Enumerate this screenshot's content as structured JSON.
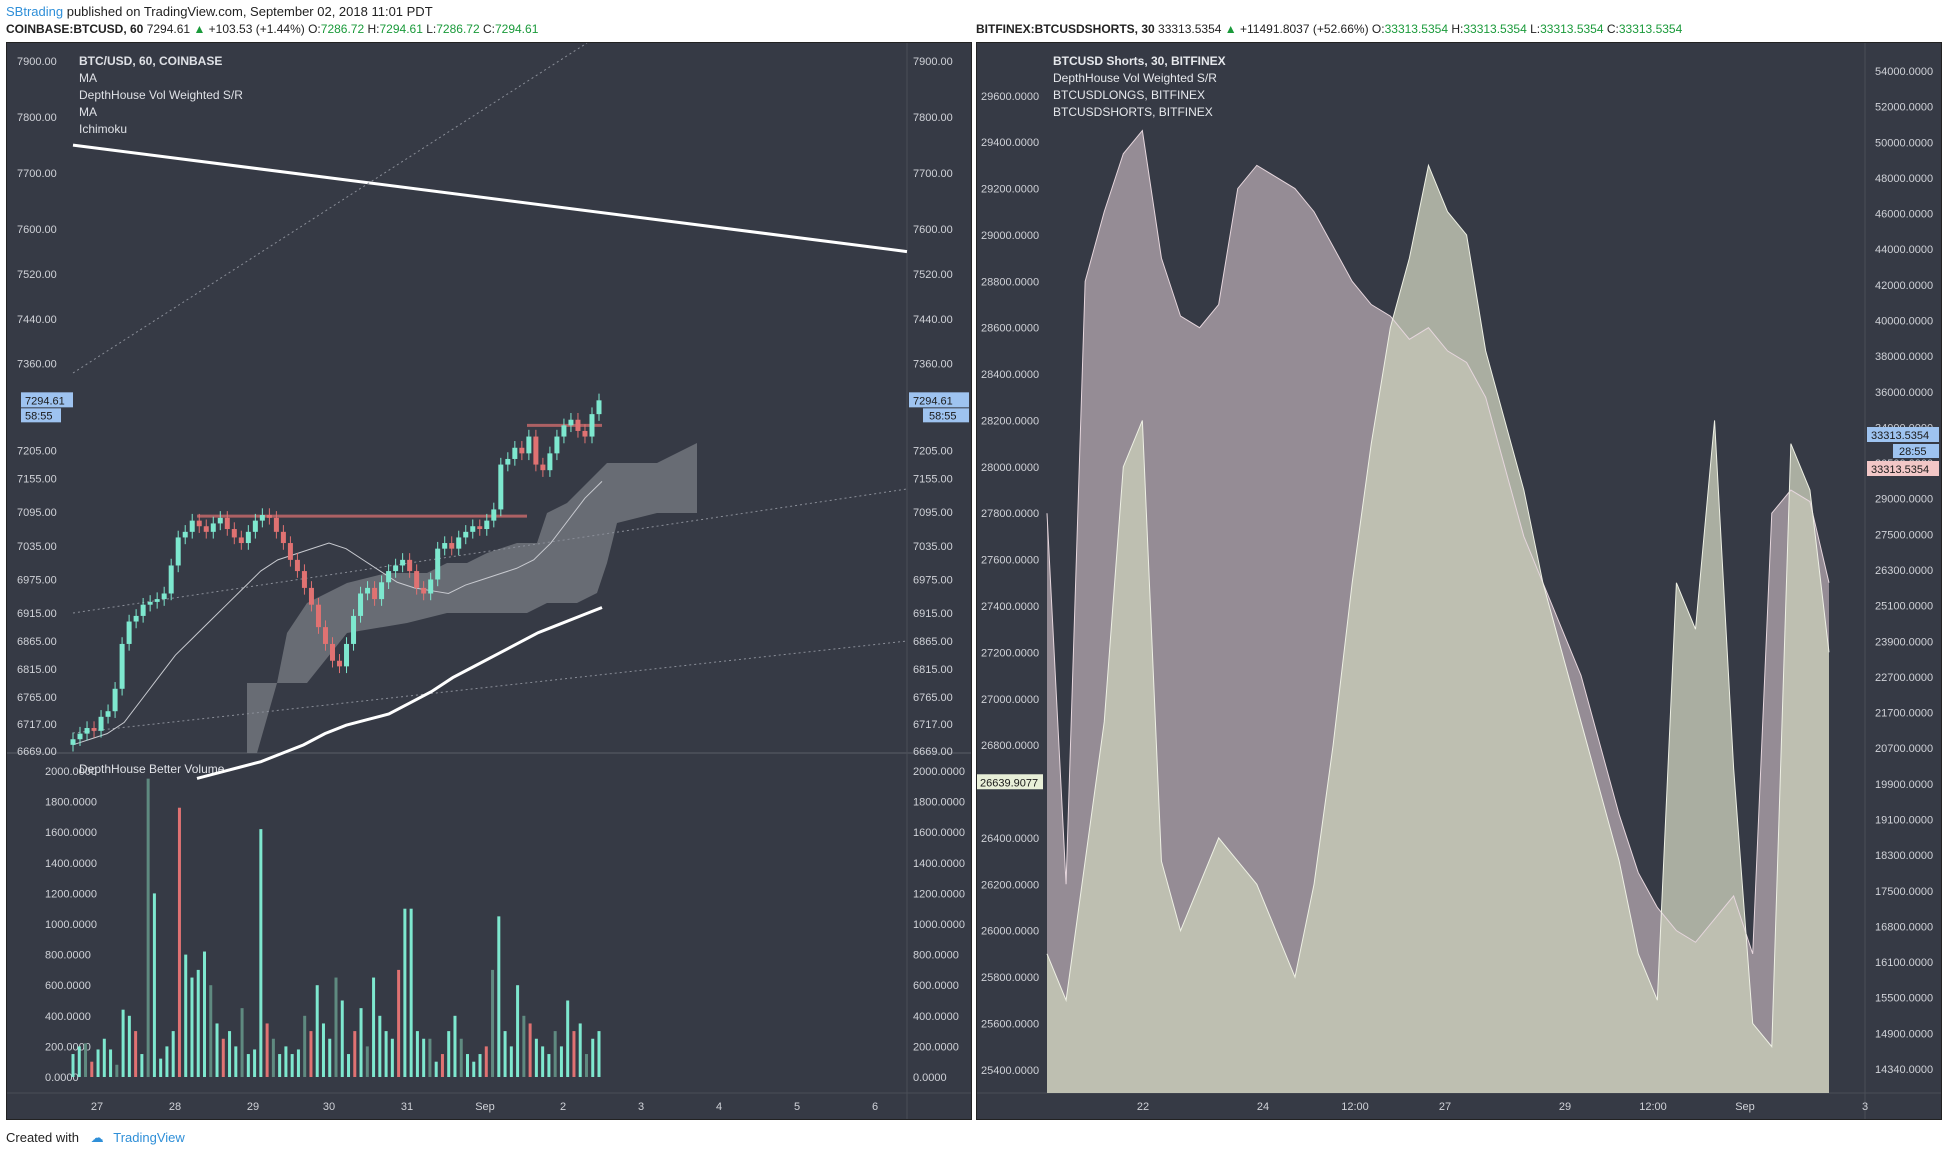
{
  "header": {
    "user": "SBtrading",
    "published": "published on TradingView.com, September 02, 2018 11:01 PDT"
  },
  "left_quote": {
    "symbol": "COINBASE:BTCUSD, 60",
    "last": "7294.61",
    "change": "+103.53 (+1.44%)",
    "o_label": "O:",
    "o": "7286.72",
    "h_label": "H:",
    "h": "7294.61",
    "l_label": "L:",
    "l": "7286.72",
    "c_label": "C:",
    "c": "7294.61"
  },
  "right_quote": {
    "symbol": "BITFINEX:BTCUSDSHORTS, 30",
    "last": "33313.5354",
    "change": "+11491.8037 (+52.66%)",
    "o_label": "O:",
    "o": "33313.5354",
    "h_label": "H:",
    "h": "33313.5354",
    "l_label": "L:",
    "l": "33313.5354",
    "c_label": "C:",
    "c": "33313.5354"
  },
  "footer": {
    "created_with": "Created with",
    "brand": "TradingView"
  },
  "colors": {
    "bg": "#363a45",
    "up": "#7ee8cf",
    "down": "#e07272",
    "grid_text": "#d0d2d8",
    "price_tag": "#9ec3f0",
    "shorts_fill": "#c9b8c0",
    "longs_fill": "#c8ccb8"
  },
  "chart_data": [
    {
      "type": "candlestick",
      "legend": [
        "BTC/USD, 60, COINBASE",
        "MA",
        "DepthHouse Vol Weighted S/R",
        "MA",
        "Ichimoku"
      ],
      "y_ticks": [
        "7900.00",
        "7800.00",
        "7700.00",
        "7600.00",
        "7520.00",
        "7440.00",
        "7360.00",
        "7205.00",
        "7155.00",
        "7095.00",
        "7035.00",
        "6975.00",
        "6915.00",
        "6865.00",
        "6815.00",
        "6765.00",
        "6717.00",
        "6669.00"
      ],
      "x_ticks": [
        "27",
        "28",
        "29",
        "30",
        "31",
        "Sep",
        "2",
        "3",
        "4",
        "5",
        "6"
      ],
      "last_price_tag": "7294.61",
      "countdown_tag": "58:55",
      "close_series": [
        6690,
        6700,
        6710,
        6705,
        6730,
        6740,
        6780,
        6860,
        6900,
        6910,
        6930,
        6935,
        6940,
        6950,
        7000,
        7050,
        7060,
        7080,
        7070,
        7060,
        7075,
        7085,
        7065,
        7050,
        7040,
        7060,
        7080,
        7090,
        7085,
        7060,
        7040,
        7010,
        6990,
        6960,
        6930,
        6890,
        6860,
        6830,
        6820,
        6860,
        6910,
        6950,
        6960,
        6940,
        6970,
        6990,
        7000,
        7010,
        6990,
        6960,
        6950,
        6975,
        7030,
        7040,
        7030,
        7050,
        7060,
        7070,
        7065,
        7080,
        7100,
        7180,
        7190,
        7210,
        7200,
        7230,
        7180,
        7170,
        7200,
        7230,
        7250,
        7260,
        7240,
        7230,
        7270,
        7294.61
      ],
      "ma_fast": [
        6680,
        6690,
        6700,
        6720,
        6760,
        6800,
        6840,
        6870,
        6900,
        6930,
        6960,
        6990,
        7010,
        7020,
        7030,
        7040,
        7030,
        7010,
        6990,
        6970,
        6960,
        6955,
        6950,
        6965,
        6975,
        6985,
        6995,
        7010,
        7040,
        7080,
        7120,
        7150
      ],
      "ma_slow": [
        6620,
        6630,
        6640,
        6650,
        6665,
        6680,
        6700,
        6715,
        6725,
        6735,
        6755,
        6775,
        6800,
        6820,
        6840,
        6860,
        6880,
        6895,
        6910,
        6925
      ],
      "trendline": {
        "start": 7750,
        "end": 7560
      }
    },
    {
      "type": "bar",
      "legend": [
        "DepthHouse Better Volume"
      ],
      "y_ticks": [
        "2000.0000",
        "1800.0000",
        "1600.0000",
        "1400.0000",
        "1200.0000",
        "1000.0000",
        "800.0000",
        "600.0000",
        "400.0000",
        "200.0000",
        "0.0000"
      ],
      "values": [
        150,
        200,
        220,
        100,
        180,
        250,
        180,
        80,
        440,
        400,
        300,
        150,
        1950,
        1200,
        120,
        200,
        300,
        1760,
        800,
        650,
        700,
        820,
        600,
        350,
        250,
        300,
        200,
        450,
        150,
        180,
        1620,
        350,
        250,
        150,
        200,
        150,
        180,
        400,
        300,
        600,
        350,
        250,
        650,
        500,
        150,
        300,
        450,
        200,
        650,
        400,
        300,
        250,
        700,
        1100,
        1100,
        300,
        250,
        250,
        100,
        150,
        300,
        400,
        250,
        150,
        100,
        150,
        200,
        700,
        1050,
        300,
        200,
        600,
        400,
        350,
        250,
        200,
        150,
        300,
        200,
        500,
        300,
        350,
        150,
        250,
        300
      ],
      "colors_pattern": "mostly up (teal) with down (red) and neutral (gray) bars"
    },
    {
      "type": "area",
      "legend": [
        "BTCUSD Shorts, 30, BITFINEX",
        "DepthHouse Vol Weighted S/R",
        "BTCUSDLONGS, BITFINEX",
        "BTCUSDSHORTS, BITFINEX"
      ],
      "y_ticks_left": [
        "29600.0000",
        "29400.0000",
        "29200.0000",
        "29000.0000",
        "28800.0000",
        "28600.0000",
        "28400.0000",
        "28200.0000",
        "28000.0000",
        "27800.0000",
        "27600.0000",
        "27400.0000",
        "27200.0000",
        "27000.0000",
        "26800.0000",
        "26400.0000",
        "26200.0000",
        "26000.0000",
        "25800.0000",
        "25600.0000",
        "25400.0000"
      ],
      "y_ticks_right": [
        "54000.0000",
        "52000.0000",
        "50000.0000",
        "48000.0000",
        "46000.0000",
        "44000.0000",
        "42000.0000",
        "40000.0000",
        "38000.0000",
        "36000.0000",
        "34000.0000",
        "30500.0000",
        "29000.0000",
        "27500.0000",
        "26300.0000",
        "25100.0000",
        "23900.0000",
        "22700.0000",
        "21700.0000",
        "20700.0000",
        "19900.0000",
        "19100.0000",
        "18300.0000",
        "17500.0000",
        "16800.0000",
        "16100.0000",
        "15500.0000",
        "14900.0000",
        "14340.0000"
      ],
      "x_ticks": [
        "22",
        "24",
        "12:00",
        "27",
        "29",
        "12:00",
        "Sep",
        "3"
      ],
      "left_tag": "26639.9077",
      "right_tag_longs": "33313.5354",
      "right_tag_countdown": "28:55",
      "right_tag_shorts": "33313.5354",
      "series": [
        {
          "name": "BTCUSDSHORTS",
          "values": [
            27800,
            26200,
            28800,
            29100,
            29350,
            29450,
            28900,
            28650,
            28600,
            28700,
            29200,
            29300,
            29250,
            29200,
            29100,
            28950,
            28800,
            28700,
            28650,
            28550,
            28600,
            28500,
            28450,
            28300,
            28000,
            27700,
            27500,
            27300,
            27100,
            26800,
            26500,
            26250,
            26100,
            26000,
            25950,
            26050,
            26150,
            25900,
            27800,
            27900,
            27850,
            27500
          ]
        },
        {
          "name": "BTCUSDLONGS",
          "values": [
            25900,
            25700,
            26300,
            26900,
            28000,
            28200,
            26300,
            26000,
            26200,
            26400,
            26300,
            26200,
            26000,
            25800,
            26200,
            26800,
            27500,
            28100,
            28600,
            28900,
            29300,
            29100,
            29000,
            28500,
            28200,
            27900,
            27500,
            27200,
            26900,
            26600,
            26300,
            25900,
            25700,
            27500,
            27300,
            28200,
            26700,
            25600,
            25500,
            28100,
            27900,
            27200
          ]
        }
      ]
    }
  ]
}
